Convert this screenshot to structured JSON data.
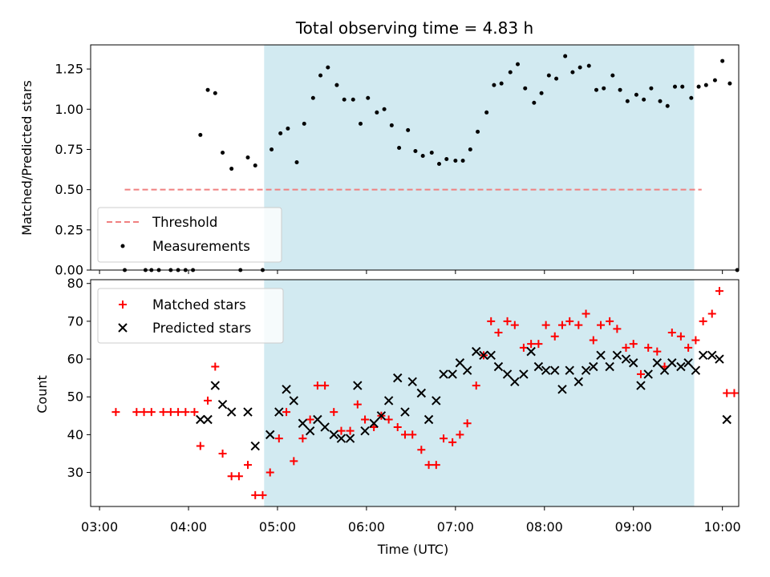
{
  "chart_data": [
    {
      "panel": "top",
      "type": "scatter",
      "title": "Total observing time = 4.83 h",
      "xlabel": "",
      "ylabel": "Matched/Predicted stars",
      "ylim": [
        0,
        1.4
      ],
      "yticks": [
        "0.00",
        "0.25",
        "0.50",
        "0.75",
        "1.00",
        "1.25"
      ],
      "observing_window": {
        "start": "04:51",
        "end": "09:41",
        "color": "#add8e6"
      },
      "threshold": {
        "name": "Threshold",
        "value": 0.5,
        "x_start": "03:17",
        "x_end": "09:46",
        "color": "#f08080"
      },
      "series": [
        {
          "name": "Measurements",
          "color": "#000000",
          "points": [
            [
              "03:17",
              0
            ],
            [
              "03:31",
              0
            ],
            [
              "03:35",
              0
            ],
            [
              "03:40",
              0
            ],
            [
              "03:48",
              0
            ],
            [
              "03:53",
              0
            ],
            [
              "03:58",
              0
            ],
            [
              "04:03",
              0
            ],
            [
              "04:08",
              0.84
            ],
            [
              "04:13",
              1.12
            ],
            [
              "04:18",
              1.1
            ],
            [
              "04:23",
              0.73
            ],
            [
              "04:29",
              0.63
            ],
            [
              "04:35",
              0
            ],
            [
              "04:40",
              0.7
            ],
            [
              "04:45",
              0.65
            ],
            [
              "04:50",
              0
            ],
            [
              "04:56",
              0.75
            ],
            [
              "05:02",
              0.85
            ],
            [
              "05:07",
              0.88
            ],
            [
              "05:13",
              0.67
            ],
            [
              "05:18",
              0.91
            ],
            [
              "05:24",
              1.07
            ],
            [
              "05:29",
              1.21
            ],
            [
              "05:34",
              1.26
            ],
            [
              "05:40",
              1.15
            ],
            [
              "05:45",
              1.06
            ],
            [
              "05:51",
              1.06
            ],
            [
              "05:56",
              0.91
            ],
            [
              "06:01",
              1.07
            ],
            [
              "06:07",
              0.98
            ],
            [
              "06:12",
              1.0
            ],
            [
              "06:17",
              0.9
            ],
            [
              "06:22",
              0.76
            ],
            [
              "06:28",
              0.87
            ],
            [
              "06:33",
              0.74
            ],
            [
              "06:38",
              0.71
            ],
            [
              "06:44",
              0.73
            ],
            [
              "06:49",
              0.66
            ],
            [
              "06:54",
              0.69
            ],
            [
              "07:00",
              0.68
            ],
            [
              "07:05",
              0.68
            ],
            [
              "07:10",
              0.75
            ],
            [
              "07:15",
              0.86
            ],
            [
              "07:21",
              0.98
            ],
            [
              "07:26",
              1.15
            ],
            [
              "07:31",
              1.16
            ],
            [
              "07:37",
              1.23
            ],
            [
              "07:42",
              1.28
            ],
            [
              "07:47",
              1.13
            ],
            [
              "07:53",
              1.04
            ],
            [
              "07:58",
              1.1
            ],
            [
              "08:03",
              1.21
            ],
            [
              "08:08",
              1.19
            ],
            [
              "08:14",
              1.33
            ],
            [
              "08:19",
              1.23
            ],
            [
              "08:24",
              1.26
            ],
            [
              "08:30",
              1.27
            ],
            [
              "08:35",
              1.12
            ],
            [
              "08:40",
              1.13
            ],
            [
              "08:46",
              1.21
            ],
            [
              "08:51",
              1.12
            ],
            [
              "08:56",
              1.05
            ],
            [
              "09:02",
              1.09
            ],
            [
              "09:07",
              1.06
            ],
            [
              "09:12",
              1.13
            ],
            [
              "09:18",
              1.05
            ],
            [
              "09:23",
              1.02
            ],
            [
              "09:28",
              1.14
            ],
            [
              "09:33",
              1.14
            ],
            [
              "09:39",
              1.07
            ],
            [
              "09:44",
              1.14
            ],
            [
              "09:49",
              1.15
            ],
            [
              "09:55",
              1.18
            ],
            [
              "10:00",
              1.3
            ],
            [
              "10:05",
              1.16
            ],
            [
              "10:10",
              0
            ]
          ]
        }
      ],
      "legend": {
        "placement": "lower-left",
        "entries": [
          "Threshold",
          "Measurements"
        ]
      }
    },
    {
      "panel": "bottom",
      "type": "scatter",
      "title": "",
      "xlabel": "Time (UTC)",
      "ylabel": "Count",
      "ylim": [
        21,
        81
      ],
      "yticks": [
        "30",
        "40",
        "50",
        "60",
        "70",
        "80"
      ],
      "x_range": [
        "02:54",
        "10:11"
      ],
      "xticks": [
        "03:00",
        "04:00",
        "05:00",
        "06:00",
        "07:00",
        "08:00",
        "09:00",
        "10:00"
      ],
      "observing_window": {
        "start": "04:51",
        "end": "09:41",
        "color": "#add8e6"
      },
      "series": [
        {
          "name": "Matched stars",
          "marker": "plus",
          "color": "#ff0000",
          "points": [
            [
              "03:11",
              46
            ],
            [
              "03:25",
              46
            ],
            [
              "03:30",
              46
            ],
            [
              "03:35",
              46
            ],
            [
              "03:43",
              46
            ],
            [
              "03:48",
              46
            ],
            [
              "03:53",
              46
            ],
            [
              "03:58",
              46
            ],
            [
              "04:04",
              46
            ],
            [
              "04:08",
              37
            ],
            [
              "04:13",
              49
            ],
            [
              "04:18",
              58
            ],
            [
              "04:23",
              35
            ],
            [
              "04:29",
              29
            ],
            [
              "04:34",
              29
            ],
            [
              "04:40",
              32
            ],
            [
              "04:45",
              24
            ],
            [
              "04:50",
              24
            ],
            [
              "04:55",
              30
            ],
            [
              "05:01",
              39
            ],
            [
              "05:06",
              46
            ],
            [
              "05:11",
              33
            ],
            [
              "05:17",
              39
            ],
            [
              "05:22",
              44
            ],
            [
              "05:27",
              53
            ],
            [
              "05:32",
              53
            ],
            [
              "05:38",
              46
            ],
            [
              "05:43",
              41
            ],
            [
              "05:49",
              41
            ],
            [
              "05:54",
              48
            ],
            [
              "05:59",
              44
            ],
            [
              "06:05",
              42
            ],
            [
              "06:10",
              45
            ],
            [
              "06:15",
              44
            ],
            [
              "06:21",
              42
            ],
            [
              "06:26",
              40
            ],
            [
              "06:31",
              40
            ],
            [
              "06:37",
              36
            ],
            [
              "06:42",
              32
            ],
            [
              "06:47",
              32
            ],
            [
              "06:52",
              39
            ],
            [
              "06:58",
              38
            ],
            [
              "07:03",
              40
            ],
            [
              "07:08",
              43
            ],
            [
              "07:14",
              53
            ],
            [
              "07:19",
              61
            ],
            [
              "07:24",
              70
            ],
            [
              "07:29",
              67
            ],
            [
              "07:35",
              70
            ],
            [
              "07:40",
              69
            ],
            [
              "07:46",
              63
            ],
            [
              "07:51",
              64
            ],
            [
              "07:56",
              64
            ],
            [
              "08:01",
              69
            ],
            [
              "08:07",
              66
            ],
            [
              "08:12",
              69
            ],
            [
              "08:17",
              70
            ],
            [
              "08:23",
              69
            ],
            [
              "08:28",
              72
            ],
            [
              "08:33",
              65
            ],
            [
              "08:38",
              69
            ],
            [
              "08:44",
              70
            ],
            [
              "08:49",
              68
            ],
            [
              "08:55",
              63
            ],
            [
              "09:00",
              64
            ],
            [
              "09:05",
              56
            ],
            [
              "09:10",
              63
            ],
            [
              "09:16",
              62
            ],
            [
              "09:21",
              58
            ],
            [
              "09:26",
              67
            ],
            [
              "09:32",
              66
            ],
            [
              "09:37",
              63
            ],
            [
              "09:42",
              65
            ],
            [
              "09:47",
              70
            ],
            [
              "09:53",
              72
            ],
            [
              "09:58",
              78
            ],
            [
              "10:03",
              51
            ],
            [
              "10:08",
              51
            ]
          ]
        },
        {
          "name": "Predicted stars",
          "marker": "x",
          "color": "#000000",
          "points": [
            [
              "04:08",
              44
            ],
            [
              "04:13",
              44
            ],
            [
              "04:18",
              53
            ],
            [
              "04:23",
              48
            ],
            [
              "04:29",
              46
            ],
            [
              "04:40",
              46
            ],
            [
              "04:45",
              37
            ],
            [
              "04:55",
              40
            ],
            [
              "05:01",
              46
            ],
            [
              "05:06",
              52
            ],
            [
              "05:11",
              49
            ],
            [
              "05:17",
              43
            ],
            [
              "05:22",
              41
            ],
            [
              "05:27",
              44
            ],
            [
              "05:32",
              42
            ],
            [
              "05:38",
              40
            ],
            [
              "05:43",
              39
            ],
            [
              "05:49",
              39
            ],
            [
              "05:54",
              53
            ],
            [
              "05:59",
              41
            ],
            [
              "06:05",
              43
            ],
            [
              "06:10",
              45
            ],
            [
              "06:15",
              49
            ],
            [
              "06:21",
              55
            ],
            [
              "06:26",
              46
            ],
            [
              "06:31",
              54
            ],
            [
              "06:37",
              51
            ],
            [
              "06:42",
              44
            ],
            [
              "06:47",
              49
            ],
            [
              "06:52",
              56
            ],
            [
              "06:58",
              56
            ],
            [
              "07:03",
              59
            ],
            [
              "07:08",
              57
            ],
            [
              "07:14",
              62
            ],
            [
              "07:19",
              61
            ],
            [
              "07:24",
              61
            ],
            [
              "07:29",
              58
            ],
            [
              "07:35",
              56
            ],
            [
              "07:40",
              54
            ],
            [
              "07:46",
              56
            ],
            [
              "07:51",
              62
            ],
            [
              "07:56",
              58
            ],
            [
              "08:01",
              57
            ],
            [
              "08:07",
              57
            ],
            [
              "08:12",
              52
            ],
            [
              "08:17",
              57
            ],
            [
              "08:23",
              54
            ],
            [
              "08:28",
              57
            ],
            [
              "08:33",
              58
            ],
            [
              "08:38",
              61
            ],
            [
              "08:44",
              58
            ],
            [
              "08:49",
              61
            ],
            [
              "08:55",
              60
            ],
            [
              "09:00",
              59
            ],
            [
              "09:05",
              53
            ],
            [
              "09:10",
              56
            ],
            [
              "09:16",
              59
            ],
            [
              "09:21",
              57
            ],
            [
              "09:26",
              59
            ],
            [
              "09:32",
              58
            ],
            [
              "09:37",
              59
            ],
            [
              "09:42",
              57
            ],
            [
              "09:47",
              61
            ],
            [
              "09:53",
              61
            ],
            [
              "09:58",
              60
            ],
            [
              "10:03",
              44
            ]
          ]
        }
      ],
      "legend": {
        "placement": "top-left",
        "entries": [
          "Matched stars",
          "Predicted stars"
        ]
      }
    }
  ]
}
